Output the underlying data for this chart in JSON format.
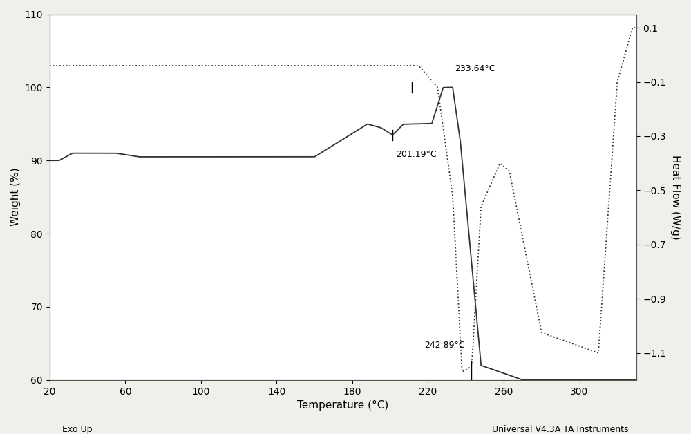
{
  "background_color": "#f0f0eb",
  "plot_bg_color": "#ffffff",
  "xlabel": "Temperature (°C)",
  "ylabel_left": "Weight (%)",
  "ylabel_right": "Heat Flow (W/g)",
  "xlim": [
    20,
    330
  ],
  "ylim_left": [
    60,
    110
  ],
  "ylim_right": [
    -1.2,
    0.15
  ],
  "xticks": [
    20,
    60,
    100,
    140,
    180,
    220,
    260,
    300
  ],
  "yticks_left": [
    60,
    70,
    80,
    90,
    100,
    110
  ],
  "yticks_right": [
    0.1,
    -0.1,
    -0.3,
    -0.5,
    -0.7,
    -0.9,
    -1.1
  ],
  "annotation_201": "201.19°C",
  "annotation_233": "233.64°C",
  "annotation_242": "242.89°C",
  "footer_left": "Exo Up",
  "footer_right": "Universal V4.3A TA Instruments",
  "line_color": "#333333",
  "line_color2": "#333333"
}
